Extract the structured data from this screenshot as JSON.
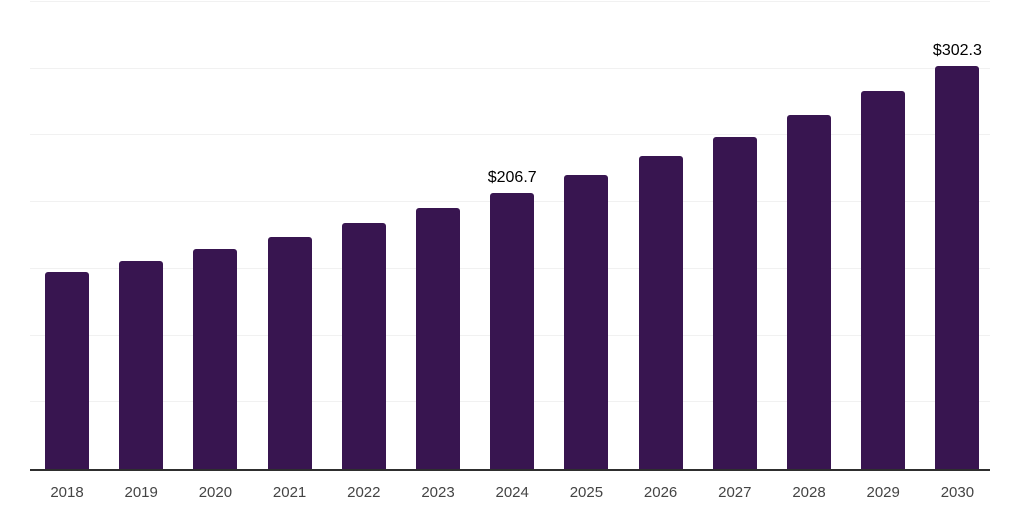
{
  "chart_data": {
    "type": "bar",
    "title": "",
    "xlabel": "",
    "ylabel": "",
    "categories": [
      "2018",
      "2019",
      "2020",
      "2021",
      "2022",
      "2023",
      "2024",
      "2025",
      "2026",
      "2027",
      "2028",
      "2029",
      "2030"
    ],
    "values": [
      147.7,
      155.9,
      164.9,
      173.9,
      184.7,
      195.5,
      206.7,
      220.1,
      234.3,
      249.0,
      265.6,
      283.5,
      302.3
    ],
    "data_labels": {
      "2024": "$206.7",
      "2030": "$302.3"
    },
    "ylim": [
      0,
      350
    ],
    "grid_step": 50,
    "grid": "horizontal-only",
    "legend_position": "none",
    "colors": {
      "bar": "#381550",
      "axis_line": "#2e2e2e",
      "gridline": "#f1f1f1",
      "tick_label": "#444444",
      "value_label": "#000000",
      "background": "#ffffff"
    }
  }
}
